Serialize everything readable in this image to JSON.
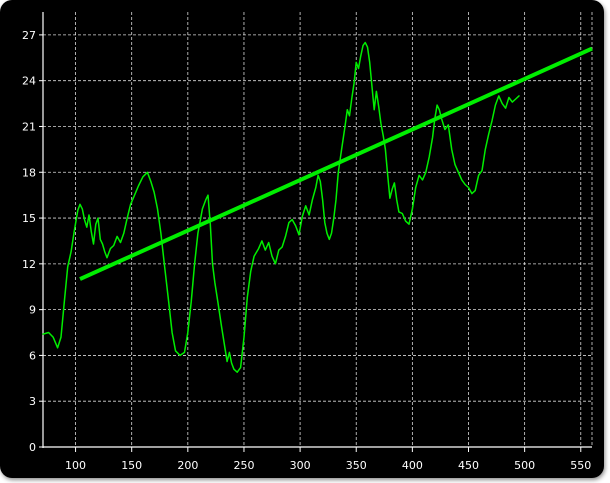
{
  "chart_data": {
    "type": "line",
    "title": "",
    "xlabel": "",
    "ylabel": "",
    "xlim": [
      71,
      560
    ],
    "ylim": [
      0,
      28.5
    ],
    "x_ticks": [
      100,
      150,
      200,
      250,
      300,
      350,
      400,
      450,
      500,
      550
    ],
    "y_ticks": [
      0,
      3,
      6,
      9,
      12,
      15,
      18,
      21,
      24,
      27
    ],
    "grid": true,
    "colors": {
      "background": "#000000",
      "grid": "#ffffff",
      "axis": "#ffffff",
      "text": "#ffffff",
      "series": "#00ee00"
    },
    "series": [
      {
        "style": "thin",
        "points": [
          [
            71,
            7.4
          ],
          [
            76,
            7.5
          ],
          [
            80,
            7.2
          ],
          [
            84,
            6.5
          ],
          [
            87,
            7.2
          ],
          [
            90,
            9.5
          ],
          [
            93,
            11.8
          ],
          [
            96,
            12.8
          ],
          [
            99,
            14.2
          ],
          [
            102,
            15.5
          ],
          [
            104,
            15.9
          ],
          [
            106,
            15.6
          ],
          [
            108,
            14.9
          ],
          [
            110,
            14.4
          ],
          [
            112,
            15.2
          ],
          [
            114,
            14.1
          ],
          [
            116,
            13.3
          ],
          [
            118,
            14.6
          ],
          [
            120,
            15.0
          ],
          [
            122,
            13.6
          ],
          [
            124,
            13.3
          ],
          [
            126,
            12.8
          ],
          [
            128,
            12.4
          ],
          [
            131,
            13.0
          ],
          [
            134,
            13.2
          ],
          [
            137,
            13.8
          ],
          [
            140,
            13.4
          ],
          [
            143,
            14.0
          ],
          [
            146,
            15.0
          ],
          [
            149,
            15.9
          ],
          [
            152,
            16.4
          ],
          [
            156,
            17.1
          ],
          [
            160,
            17.7
          ],
          [
            164,
            18.0
          ],
          [
            167,
            17.4
          ],
          [
            170,
            16.7
          ],
          [
            173,
            15.6
          ],
          [
            176,
            14.0
          ],
          [
            179,
            12.0
          ],
          [
            183,
            9.5
          ],
          [
            186,
            7.5
          ],
          [
            189,
            6.3
          ],
          [
            193,
            6.0
          ],
          [
            197,
            6.2
          ],
          [
            200,
            7.5
          ],
          [
            203,
            9.5
          ],
          [
            206,
            12.0
          ],
          [
            209,
            14.0
          ],
          [
            213,
            15.6
          ],
          [
            216,
            16.2
          ],
          [
            218,
            16.5
          ],
          [
            220,
            14.6
          ],
          [
            222,
            12.0
          ],
          [
            224,
            10.8
          ],
          [
            227,
            9.4
          ],
          [
            230,
            7.9
          ],
          [
            233,
            6.5
          ],
          [
            235,
            5.6
          ],
          [
            237,
            6.2
          ],
          [
            239,
            5.5
          ],
          [
            241,
            5.1
          ],
          [
            244,
            4.9
          ],
          [
            247,
            5.2
          ],
          [
            250,
            7.2
          ],
          [
            253,
            9.8
          ],
          [
            256,
            11.5
          ],
          [
            259,
            12.5
          ],
          [
            263,
            13.0
          ],
          [
            266,
            13.5
          ],
          [
            269,
            12.9
          ],
          [
            272,
            13.4
          ],
          [
            275,
            12.5
          ],
          [
            278,
            12.0
          ],
          [
            281,
            12.9
          ],
          [
            284,
            13.1
          ],
          [
            287,
            13.8
          ],
          [
            290,
            14.7
          ],
          [
            293,
            14.9
          ],
          [
            296,
            14.5
          ],
          [
            299,
            13.9
          ],
          [
            302,
            15.1
          ],
          [
            305,
            15.8
          ],
          [
            308,
            15.2
          ],
          [
            311,
            16.2
          ],
          [
            314,
            17.0
          ],
          [
            316,
            17.8
          ],
          [
            318,
            17.4
          ],
          [
            320,
            16.2
          ],
          [
            322,
            14.7
          ],
          [
            324,
            14.0
          ],
          [
            326,
            13.6
          ],
          [
            328,
            14.0
          ],
          [
            330,
            15.0
          ],
          [
            332,
            16.2
          ],
          [
            334,
            18.0
          ],
          [
            337,
            19.5
          ],
          [
            340,
            21.0
          ],
          [
            342,
            22.1
          ],
          [
            344,
            21.7
          ],
          [
            346,
            22.8
          ],
          [
            348,
            23.8
          ],
          [
            350,
            25.2
          ],
          [
            352,
            24.8
          ],
          [
            354,
            25.6
          ],
          [
            356,
            26.3
          ],
          [
            358,
            26.5
          ],
          [
            360,
            26.2
          ],
          [
            362,
            25.2
          ],
          [
            364,
            23.6
          ],
          [
            366,
            22.1
          ],
          [
            368,
            23.3
          ],
          [
            370,
            22.3
          ],
          [
            372,
            21.2
          ],
          [
            374,
            20.4
          ],
          [
            376,
            19.5
          ],
          [
            378,
            17.8
          ],
          [
            380,
            16.3
          ],
          [
            382,
            16.9
          ],
          [
            384,
            17.3
          ],
          [
            386,
            16.2
          ],
          [
            388,
            15.4
          ],
          [
            391,
            15.3
          ],
          [
            394,
            14.8
          ],
          [
            397,
            14.6
          ],
          [
            400,
            15.6
          ],
          [
            403,
            17.0
          ],
          [
            406,
            17.8
          ],
          [
            409,
            17.5
          ],
          [
            412,
            18.0
          ],
          [
            415,
            19.0
          ],
          [
            418,
            20.3
          ],
          [
            420,
            21.5
          ],
          [
            422,
            22.4
          ],
          [
            424,
            22.1
          ],
          [
            426,
            21.5
          ],
          [
            429,
            20.8
          ],
          [
            432,
            21.1
          ],
          [
            435,
            19.5
          ],
          [
            438,
            18.5
          ],
          [
            441,
            18.0
          ],
          [
            444,
            17.5
          ],
          [
            447,
            17.2
          ],
          [
            450,
            17.0
          ],
          [
            453,
            16.6
          ],
          [
            456,
            16.8
          ],
          [
            459,
            17.8
          ],
          [
            462,
            18.1
          ],
          [
            465,
            19.5
          ],
          [
            468,
            20.5
          ],
          [
            471,
            21.4
          ],
          [
            474,
            22.4
          ],
          [
            477,
            23.0
          ],
          [
            480,
            22.5
          ],
          [
            483,
            22.2
          ],
          [
            486,
            22.9
          ],
          [
            489,
            22.6
          ],
          [
            492,
            22.8
          ],
          [
            495,
            23.0
          ]
        ]
      },
      {
        "style": "thick",
        "points": [
          [
            104,
            11.0
          ],
          [
            560,
            26.1
          ]
        ]
      }
    ]
  }
}
